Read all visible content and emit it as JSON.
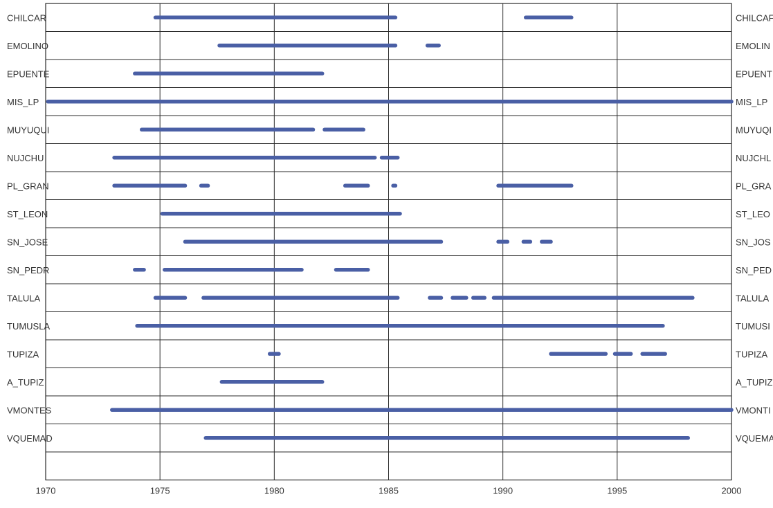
{
  "chart_data": {
    "type": "bar",
    "title": "",
    "xlabel": "",
    "ylabel": "",
    "xlim": [
      1970,
      2000
    ],
    "xticks": [
      "1970",
      "1975",
      "1980",
      "1985",
      "1990",
      "1995",
      "2000"
    ],
    "grid": true,
    "legend": "none",
    "bar_color": "#4a5fa5",
    "grid_color": "#2a2a2a",
    "stations": [
      {
        "left_label": "CHILCAR",
        "right_label": "CHILCAF",
        "segments": [
          [
            1974.8,
            1985.3
          ],
          [
            1991.0,
            1993.0
          ]
        ]
      },
      {
        "left_label": "EMOLINO",
        "right_label": "EMOLIN",
        "segments": [
          [
            1977.6,
            1985.3
          ],
          [
            1986.7,
            1987.2
          ]
        ]
      },
      {
        "left_label": "EPUENTE",
        "right_label": "EPUENT",
        "segments": [
          [
            1973.9,
            1982.1
          ]
        ]
      },
      {
        "left_label": "MIS_LP",
        "right_label": "MIS_LP",
        "segments": [
          [
            1970.1,
            2000.0
          ]
        ]
      },
      {
        "left_label": "MUYUQUI",
        "right_label": "MUYUQI",
        "segments": [
          [
            1974.2,
            1981.7
          ],
          [
            1982.2,
            1983.9
          ]
        ]
      },
      {
        "left_label": "NUJCHU",
        "right_label": "NUJCHL",
        "segments": [
          [
            1973.0,
            1984.4
          ],
          [
            1984.7,
            1985.4
          ]
        ]
      },
      {
        "left_label": "PL_GRAN",
        "right_label": "PL_GRA",
        "segments": [
          [
            1973.0,
            1976.1
          ],
          [
            1976.8,
            1977.1
          ],
          [
            1983.1,
            1984.1
          ],
          [
            1985.2,
            1985.3
          ],
          [
            1989.8,
            1993.0
          ]
        ]
      },
      {
        "left_label": "ST_LEON",
        "right_label": "ST_LEO",
        "segments": [
          [
            1975.1,
            1985.5
          ]
        ]
      },
      {
        "left_label": "SN_JOSE",
        "right_label": "SN_JOS",
        "segments": [
          [
            1976.1,
            1987.3
          ],
          [
            1989.8,
            1990.2
          ],
          [
            1990.9,
            1991.2
          ],
          [
            1991.7,
            1992.1
          ]
        ]
      },
      {
        "left_label": "SN_PEDR",
        "right_label": "SN_PED",
        "segments": [
          [
            1973.9,
            1974.3
          ],
          [
            1975.2,
            1981.2
          ],
          [
            1982.7,
            1984.1
          ]
        ]
      },
      {
        "left_label": "TALULA",
        "right_label": "TALULA",
        "segments": [
          [
            1974.8,
            1976.1
          ],
          [
            1976.9,
            1985.4
          ],
          [
            1986.8,
            1987.3
          ],
          [
            1987.8,
            1988.4
          ],
          [
            1988.7,
            1989.2
          ],
          [
            1989.6,
            1998.3
          ]
        ]
      },
      {
        "left_label": "TUMUSLA",
        "right_label": "TUMUSI",
        "segments": [
          [
            1974.0,
            1997.0
          ]
        ]
      },
      {
        "left_label": "TUPIZA",
        "right_label": "TUPIZA",
        "segments": [
          [
            1979.8,
            1980.2
          ],
          [
            1992.1,
            1994.5
          ],
          [
            1994.9,
            1995.6
          ],
          [
            1996.1,
            1997.1
          ]
        ]
      },
      {
        "left_label": "A_TUPIZ",
        "right_label": "A_TUPIZ",
        "segments": [
          [
            1977.7,
            1982.1
          ]
        ]
      },
      {
        "left_label": "VMONTES",
        "right_label": "VMONTI",
        "segments": [
          [
            1972.9,
            2000.0
          ]
        ]
      },
      {
        "left_label": "VQUEMAD",
        "right_label": "VQUEMA",
        "segments": [
          [
            1977.0,
            1998.1
          ]
        ]
      }
    ]
  }
}
